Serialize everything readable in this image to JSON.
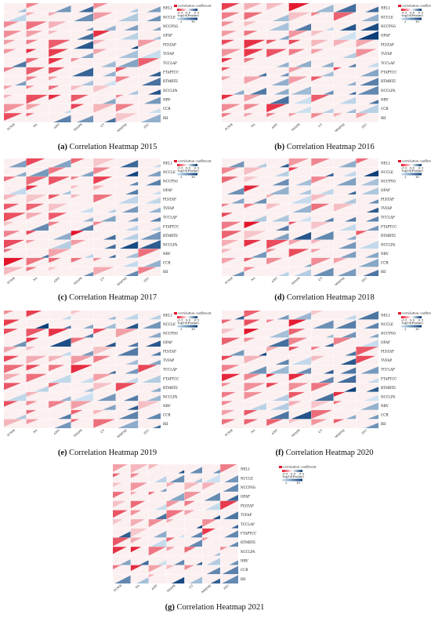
{
  "colors": {
    "negative_strong": "#e3142a",
    "negative_light": "#f6c8cc",
    "positive_light": "#cfe3f2",
    "positive_strong": "#0b3f7a",
    "cell_bg": "#fbeff0"
  },
  "legend": {
    "title": "correlation coefficient",
    "scale_label": "-log10(Pvalue)",
    "ticks_r": [
      "-0.3",
      "0.0",
      "0.3"
    ],
    "ticks_p": [
      "2",
      "10"
    ]
  },
  "chart_data": [
    {
      "type": "heatmap",
      "panel": "a",
      "caption_letter": "(a)",
      "caption_text": "Correlation Heatmap 2015",
      "rows": [
        "NEL1",
        "NCCLE",
        "NCCPSG",
        "OFAP",
        "PLVZAP",
        "TVFAP",
        "TCCLAP",
        "FTAPTCC",
        "RTMRTE",
        "NCCLPA",
        "NRV",
        "CCR",
        "RII"
      ],
      "columns": [
        "PCWR",
        "NA",
        "AMT",
        "IMAPR",
        "UT",
        "MMFMI",
        "STC"
      ],
      "seed": 11
    },
    {
      "type": "heatmap",
      "panel": "b",
      "caption_letter": "(b)",
      "caption_text": "Correlation Heatmap 2016",
      "rows": [
        "NEL1",
        "NCCLE",
        "NCCPSG",
        "OFAP",
        "PLVZAP",
        "TVFAP",
        "TCCLAP",
        "FTAPTCC",
        "RTMRTE",
        "NCCLPA",
        "NRV",
        "CCR",
        "RII"
      ],
      "columns": [
        "PCWR",
        "NA",
        "AMT",
        "IMAPR",
        "UT",
        "MMFMI",
        "STC"
      ],
      "seed": 23
    },
    {
      "type": "heatmap",
      "panel": "c",
      "caption_letter": "(c)",
      "caption_text": "Correlation Heatmap 2017",
      "rows": [
        "NEL1",
        "NCCLE",
        "NCCPSG",
        "OFAP",
        "PLVZAP",
        "TVFAP",
        "TCCLAP",
        "FTAPTCC",
        "RTMRTE",
        "NCCLPA",
        "NRV",
        "CCR",
        "RII"
      ],
      "columns": [
        "PCWR",
        "NA",
        "AMT",
        "IMAPR",
        "UT",
        "MMFMI",
        "STC"
      ],
      "seed": 37
    },
    {
      "type": "heatmap",
      "panel": "d",
      "caption_letter": "(d)",
      "caption_text": "Correlation Heatmap 2018",
      "rows": [
        "NEL1",
        "NCCLE",
        "NCCPSG",
        "OFAP",
        "PLVZAP",
        "TVFAP",
        "TCCLAP",
        "FTAPTCC",
        "RTMRTE",
        "NCCLPA",
        "NRV",
        "CCR",
        "RII"
      ],
      "columns": [
        "PCWR",
        "NA",
        "AMT",
        "IMAPR",
        "UT",
        "MMFMI",
        "STC"
      ],
      "seed": 41
    },
    {
      "type": "heatmap",
      "panel": "e",
      "caption_letter": "(e)",
      "caption_text": "Correlation Heatmap 2019",
      "rows": [
        "NEL1",
        "NCCLE",
        "NCCPSG",
        "OFAP",
        "PLVZAP",
        "TVFAP",
        "TCCLAP",
        "FTAPTCC",
        "RTMRTE",
        "NCCLPA",
        "NRV",
        "CCR",
        "RII"
      ],
      "columns": [
        "PCWR",
        "NA",
        "AMT",
        "IMAPR",
        "UT",
        "MMFMI",
        "STC"
      ],
      "seed": 53
    },
    {
      "type": "heatmap",
      "panel": "f",
      "caption_letter": "(f)",
      "caption_text": "Correlation Heatmap 2020",
      "rows": [
        "NEL1",
        "NCCLE",
        "NCCPSG",
        "OFAP",
        "PLVZAP",
        "TVFAP",
        "TCCLAP",
        "FTAPTCC",
        "RTMRTE",
        "NCCLPA",
        "NRV",
        "CCR",
        "RII"
      ],
      "columns": [
        "PCWR",
        "NA",
        "AMT",
        "IMAPR",
        "UT",
        "MMFMI",
        "STC"
      ],
      "seed": 67
    },
    {
      "type": "heatmap",
      "panel": "g",
      "caption_letter": "(g)",
      "caption_text": "Correlation Heatmap 2021",
      "rows": [
        "NEL1",
        "NCCLE",
        "NCCPSG",
        "OFAP",
        "PLVZAP",
        "TVFAP",
        "TCCLAP",
        "FTAPTCC",
        "RTMRTE",
        "NCCLPA",
        "NRV",
        "CCR",
        "RII"
      ],
      "columns": [
        "PCWR",
        "NA",
        "AMT",
        "IMAPR",
        "UT",
        "MMFMI",
        "STC"
      ],
      "seed": 79
    }
  ]
}
